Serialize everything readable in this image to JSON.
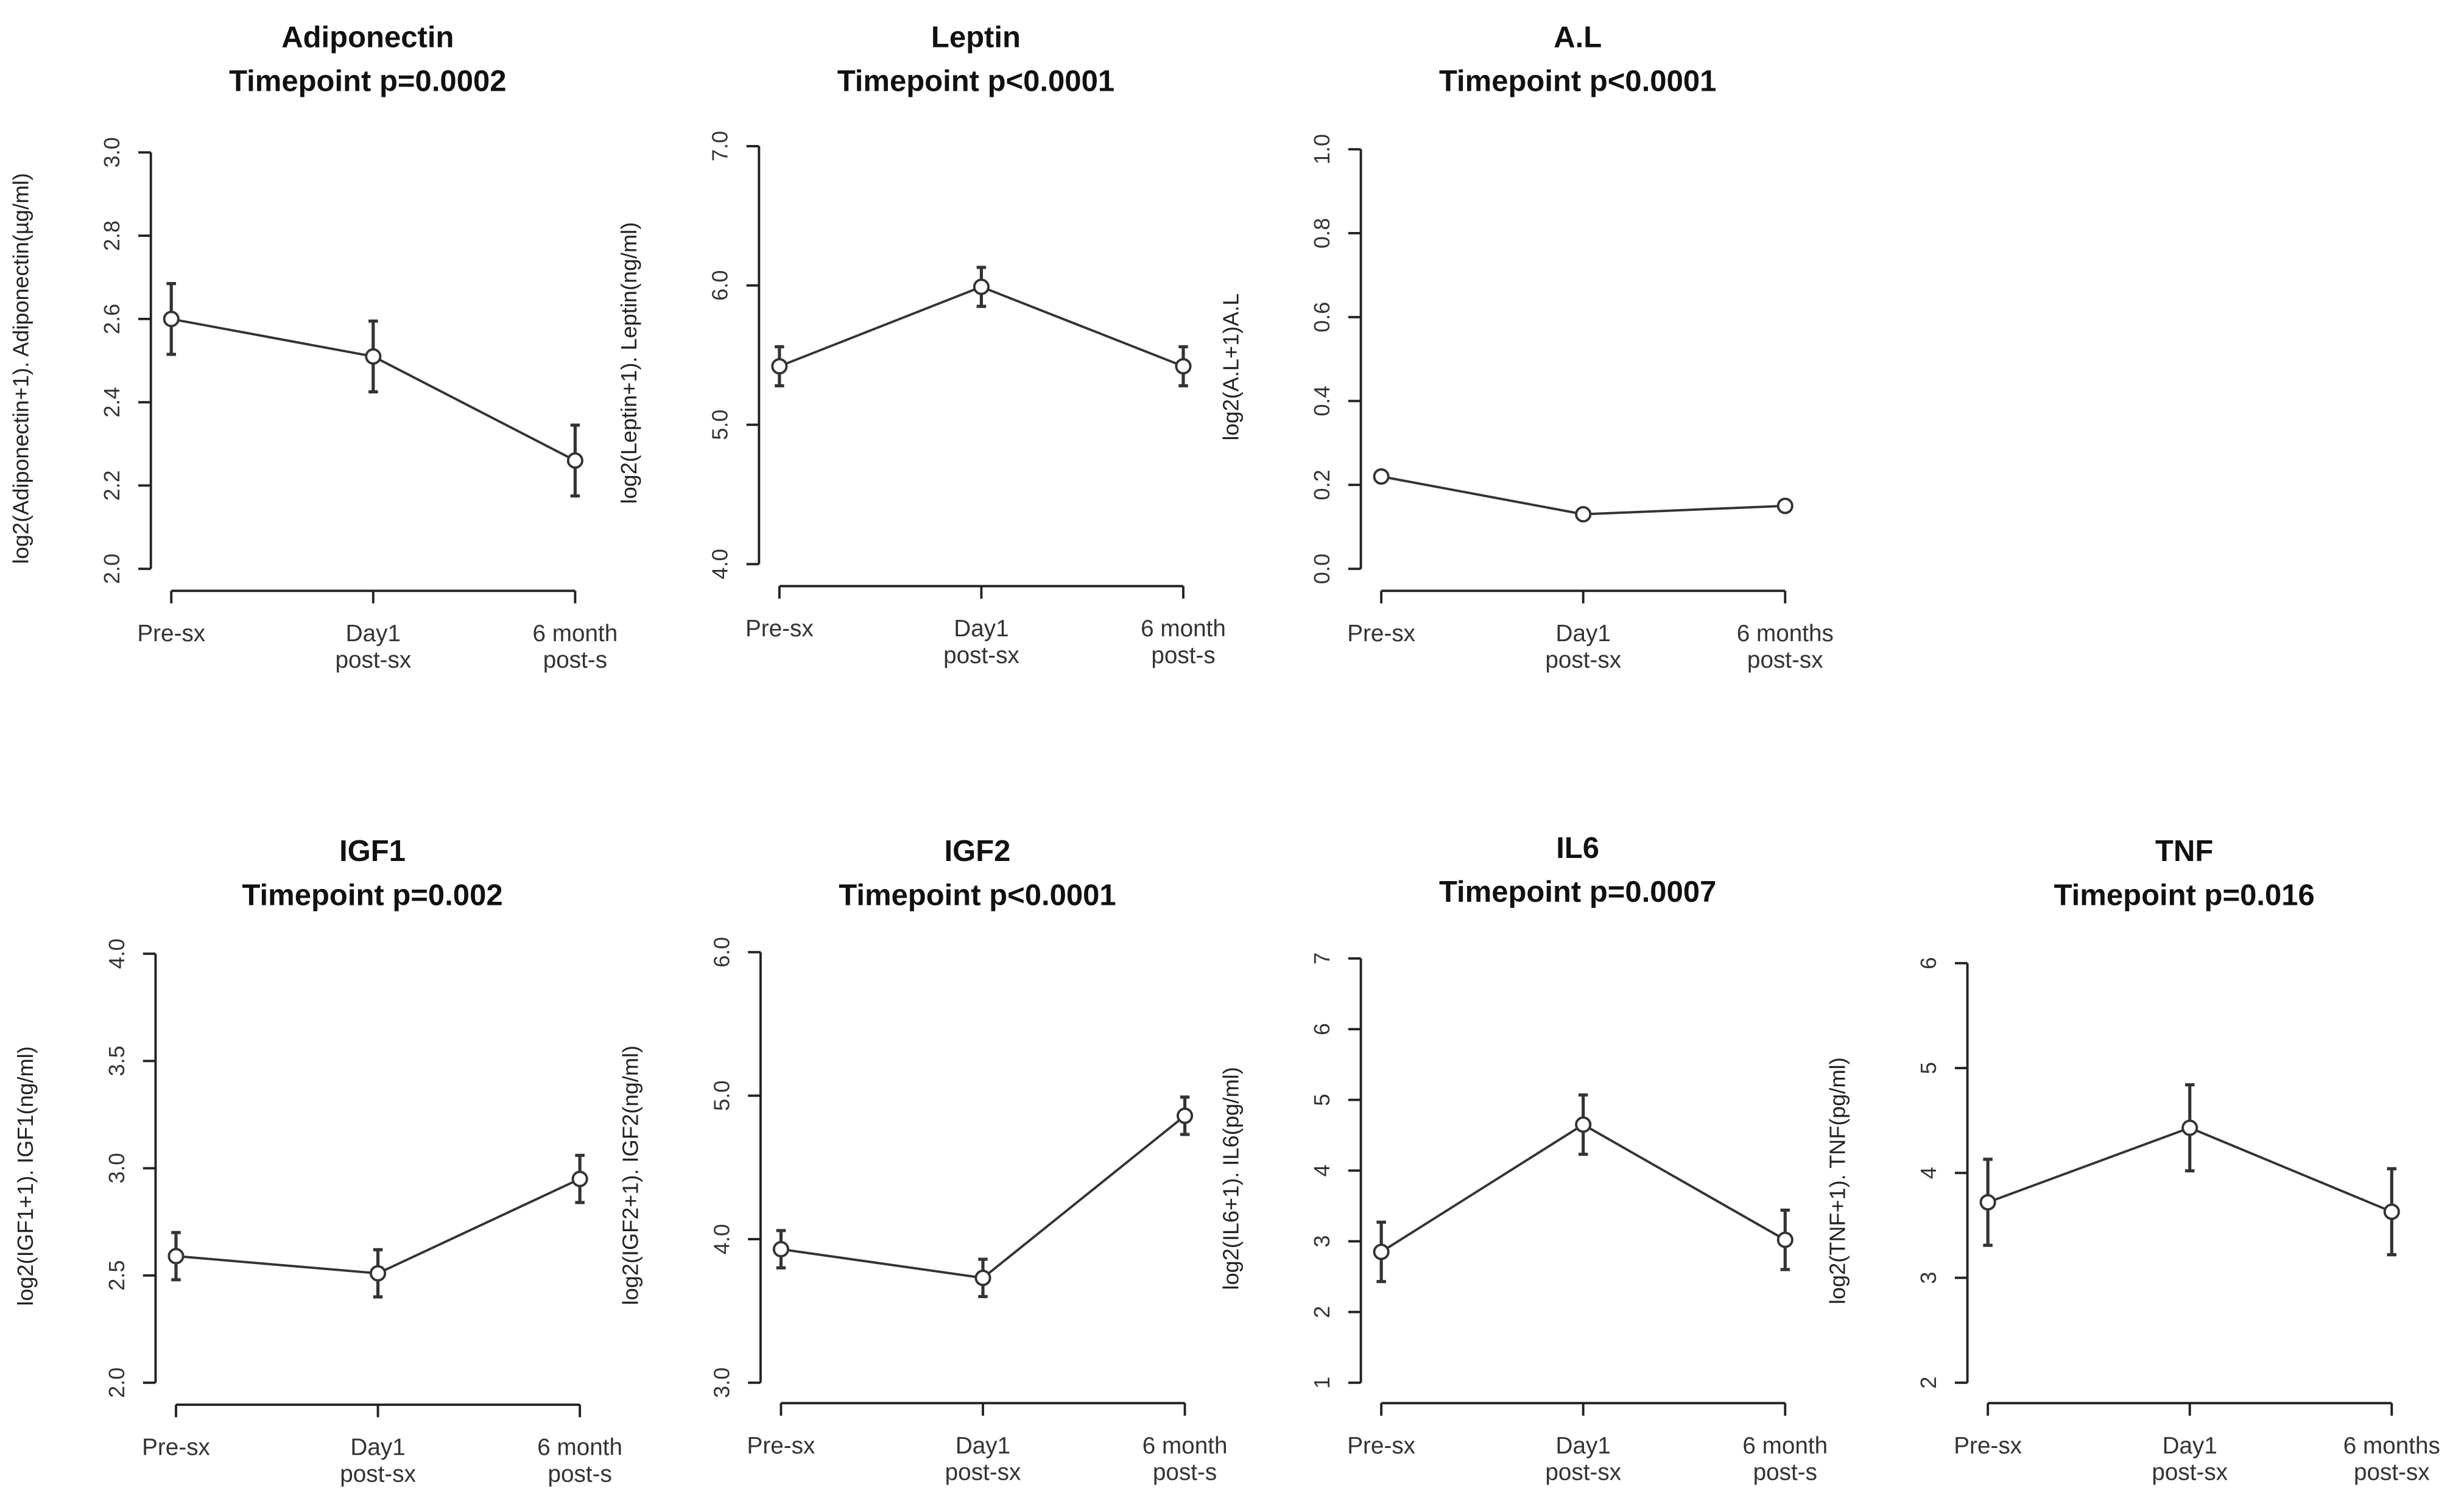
{
  "chart_data": [
    {
      "type": "line",
      "title": "Adiponectin",
      "subtitle": "Timepoint p=0.0002",
      "y_label": "log2(Adiponectin+1). Adiponectin(µg/ml)",
      "categories": [
        [
          "Pre-sx"
        ],
        [
          "Day1",
          "post-sx"
        ],
        [
          "6 month",
          "post-s"
        ]
      ],
      "values": [
        2.6,
        2.51,
        2.26
      ],
      "errors": [
        0.085,
        0.085,
        0.085
      ],
      "color": "#333333",
      "ylim": [
        2.0,
        3.0
      ],
      "yticks": [
        {
          "value": 2,
          "label": "2.0"
        },
        {
          "value": 2.2,
          "label": "2.2"
        },
        {
          "value": 2.4,
          "label": "2.4"
        },
        {
          "value": 2.6,
          "label": "2.6"
        },
        {
          "value": 2.8,
          "label": "2.8"
        },
        {
          "value": 3,
          "label": "3.0"
        }
      ]
    },
    {
      "type": "line",
      "title": "Leptin",
      "subtitle": "Timepoint p<0.0001",
      "y_label": "log2(Leptin+1). Leptin(ng/ml)",
      "categories": [
        [
          "Pre-sx"
        ],
        [
          "Day1",
          "post-sx"
        ],
        [
          "6 month",
          "post-s"
        ]
      ],
      "values": [
        5.42,
        5.99,
        5.42
      ],
      "errors": [
        0.14,
        0.14,
        0.14
      ],
      "color": "#333333",
      "ylim": [
        4.0,
        7.0
      ],
      "yticks": [
        {
          "value": 4,
          "label": "4.0"
        },
        {
          "value": 5,
          "label": "5.0"
        },
        {
          "value": 6,
          "label": "6.0"
        },
        {
          "value": 7,
          "label": "7.0"
        }
      ]
    },
    {
      "type": "line",
      "title": "A.L",
      "subtitle": "Timepoint p<0.0001",
      "y_label": "log2(A.L+1)A.L",
      "categories": [
        [
          "Pre-sx"
        ],
        [
          "Day1",
          "post-sx"
        ],
        [
          "6 months",
          "post-sx"
        ]
      ],
      "values": [
        0.22,
        0.13,
        0.15
      ],
      "errors": [
        0.01,
        0.01,
        0.01
      ],
      "color": "#333333",
      "ylim": [
        0.0,
        1.0
      ],
      "yticks": [
        {
          "value": 0,
          "label": "0.0"
        },
        {
          "value": 0.2,
          "label": "0.2"
        },
        {
          "value": 0.4,
          "label": "0.4"
        },
        {
          "value": 0.6,
          "label": "0.6"
        },
        {
          "value": 0.8,
          "label": "0.8"
        },
        {
          "value": 1,
          "label": "1.0"
        }
      ]
    },
    {
      "type": "line",
      "title": "IGF1",
      "subtitle": "Timepoint p=0.002",
      "y_label": "log2(IGF1+1). IGF1(ng/ml)",
      "categories": [
        [
          "Pre-sx"
        ],
        [
          "Day1",
          "post-sx"
        ],
        [
          "6 month",
          "post-s"
        ]
      ],
      "values": [
        2.59,
        2.51,
        2.95
      ],
      "errors": [
        0.11,
        0.11,
        0.11
      ],
      "color": "#333333",
      "ylim": [
        2.0,
        4.0
      ],
      "yticks": [
        {
          "value": 2,
          "label": "2.0"
        },
        2.5,
        {
          "value": 3,
          "label": "3.0"
        },
        3.5,
        {
          "value": 4,
          "label": "4.0"
        }
      ]
    },
    {
      "type": "line",
      "title": "IGF2",
      "subtitle": "Timepoint p<0.0001",
      "y_label": "log2(IGF2+1). IGF2(ng/ml)",
      "categories": [
        [
          "Pre-sx"
        ],
        [
          "Day1",
          "post-sx"
        ],
        [
          "6 month",
          "post-s"
        ]
      ],
      "values": [
        3.93,
        3.73,
        4.86
      ],
      "errors": [
        0.13,
        0.13,
        0.13
      ],
      "color": "#333333",
      "ylim": [
        3.0,
        6.0
      ],
      "yticks": [
        {
          "value": 3,
          "label": "3.0"
        },
        {
          "value": 4,
          "label": "4.0"
        },
        {
          "value": 5,
          "label": "5.0"
        },
        {
          "value": 6,
          "label": "6.0"
        }
      ]
    },
    {
      "type": "line",
      "title": "IL6",
      "subtitle": "Timepoint p=0.0007",
      "y_label": "log2(IL6+1). IL6(pg/ml)",
      "categories": [
        [
          "Pre-sx"
        ],
        [
          "Day1",
          "post-sx"
        ],
        [
          "6 month",
          "post-s"
        ]
      ],
      "values": [
        2.85,
        4.65,
        3.02
      ],
      "errors": [
        0.42,
        0.42,
        0.42
      ],
      "color": "#333333",
      "ylim": [
        1,
        7
      ],
      "yticks": [
        1,
        2,
        3,
        4,
        5,
        6,
        7
      ]
    },
    {
      "type": "line",
      "title": "TNF",
      "subtitle": "Timepoint p=0.016",
      "y_label": "log2(TNF+1). TNF(pg/ml)",
      "categories": [
        [
          "Pre-sx"
        ],
        [
          "Day1",
          "post-sx"
        ],
        [
          "6 months",
          "post-sx"
        ]
      ],
      "values": [
        3.72,
        4.43,
        3.63
      ],
      "errors": [
        0.41,
        0.41,
        0.41
      ],
      "color": "#333333",
      "ylim": [
        2,
        6
      ],
      "yticks": [
        2,
        3,
        4,
        5,
        6
      ]
    }
  ]
}
